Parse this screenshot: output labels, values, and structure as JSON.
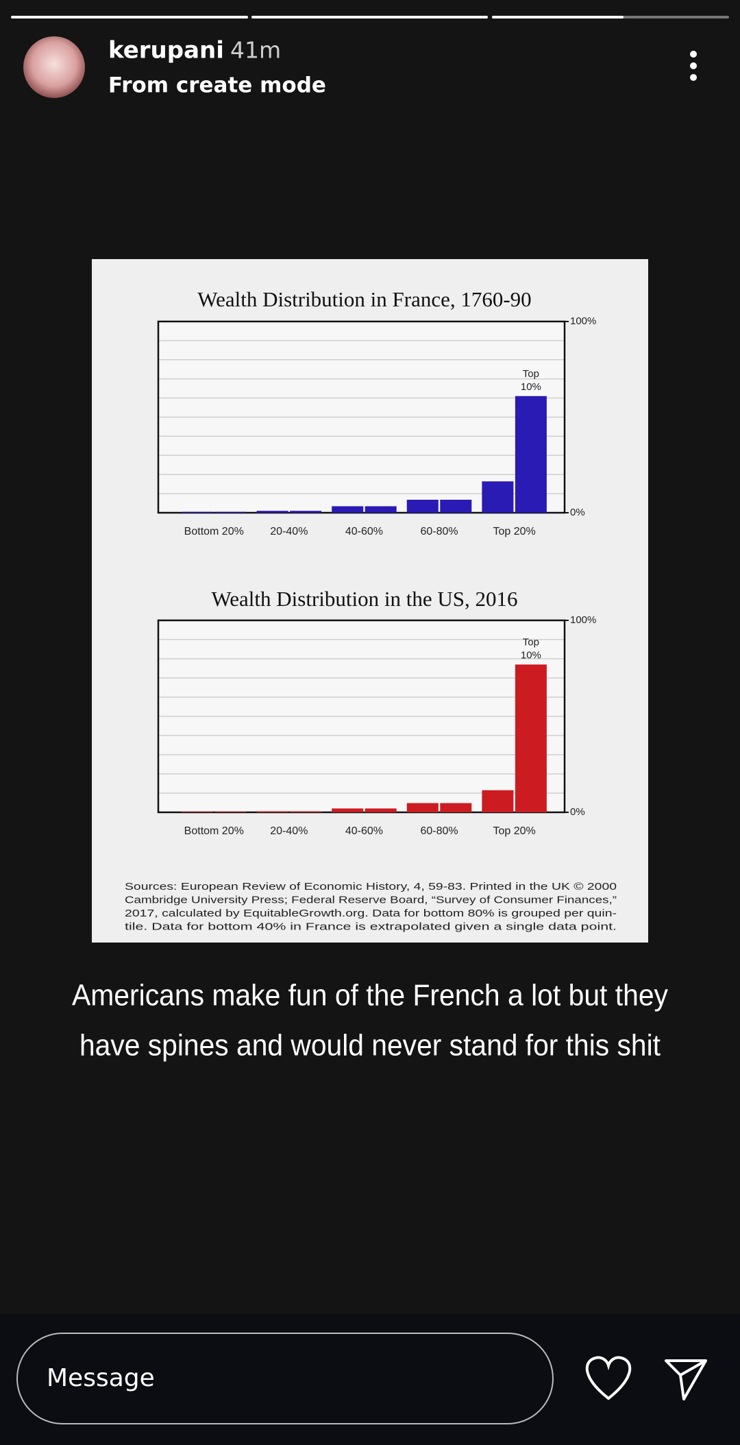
{
  "header": {
    "username": "kerupani",
    "time": "41m",
    "subtitle": "From create mode"
  },
  "chart_data": [
    {
      "type": "bar",
      "title": "Wealth Distribution in France, 1760-90",
      "categories": [
        "Bottom 20%",
        null,
        "20-40%",
        null,
        "40-60%",
        null,
        "60-80%",
        null,
        "Top 20%",
        null
      ],
      "values": [
        0.5,
        0.5,
        1,
        1,
        3.4,
        3.4,
        6.8,
        6.8,
        16.4,
        61
      ],
      "color": "#2a1bb5",
      "ylim": [
        0,
        100
      ],
      "yticks": [
        {
          "value": 0,
          "label": "0%"
        },
        {
          "value": 100,
          "label": "100%"
        }
      ],
      "minor_yticks": [
        10,
        20,
        30,
        40,
        50,
        60,
        70,
        80,
        90
      ],
      "annotation": [
        "Top",
        "10%"
      ]
    },
    {
      "type": "bar",
      "title": "Wealth Distribution in the US, 2016",
      "categories": [
        "Bottom 20%",
        null,
        "20-40%",
        null,
        "40-60%",
        null,
        "60-80%",
        null,
        "Top 20%",
        null
      ],
      "values": [
        0.3,
        0.3,
        0.5,
        0.5,
        2,
        2,
        4.8,
        4.8,
        11.5,
        77
      ],
      "color": "#cc1c22",
      "ylim": [
        0,
        100
      ],
      "yticks": [
        {
          "value": 0,
          "label": "0%"
        },
        {
          "value": 100,
          "label": "100%"
        }
      ],
      "minor_yticks": [
        10,
        20,
        30,
        40,
        50,
        60,
        70,
        80,
        90
      ],
      "annotation": [
        "Top",
        "10%"
      ]
    }
  ],
  "sources": [
    "Sources: European Review of Economic History, 4, 59-83. Printed in the UK © 2000",
    "Cambridge University Press; Federal Reserve Board, “Survey of Consumer Finances,”",
    "2017, calculated by EquitableGrowth.org. Data for bottom 80% is grouped per quin-",
    "tile. Data for bottom 40% in France is extrapolated given a single data point."
  ],
  "caption": [
    "Americans make fun of the French a lot but they",
    "have spines and would never stand for this shit"
  ],
  "message_placeholder": "Message"
}
